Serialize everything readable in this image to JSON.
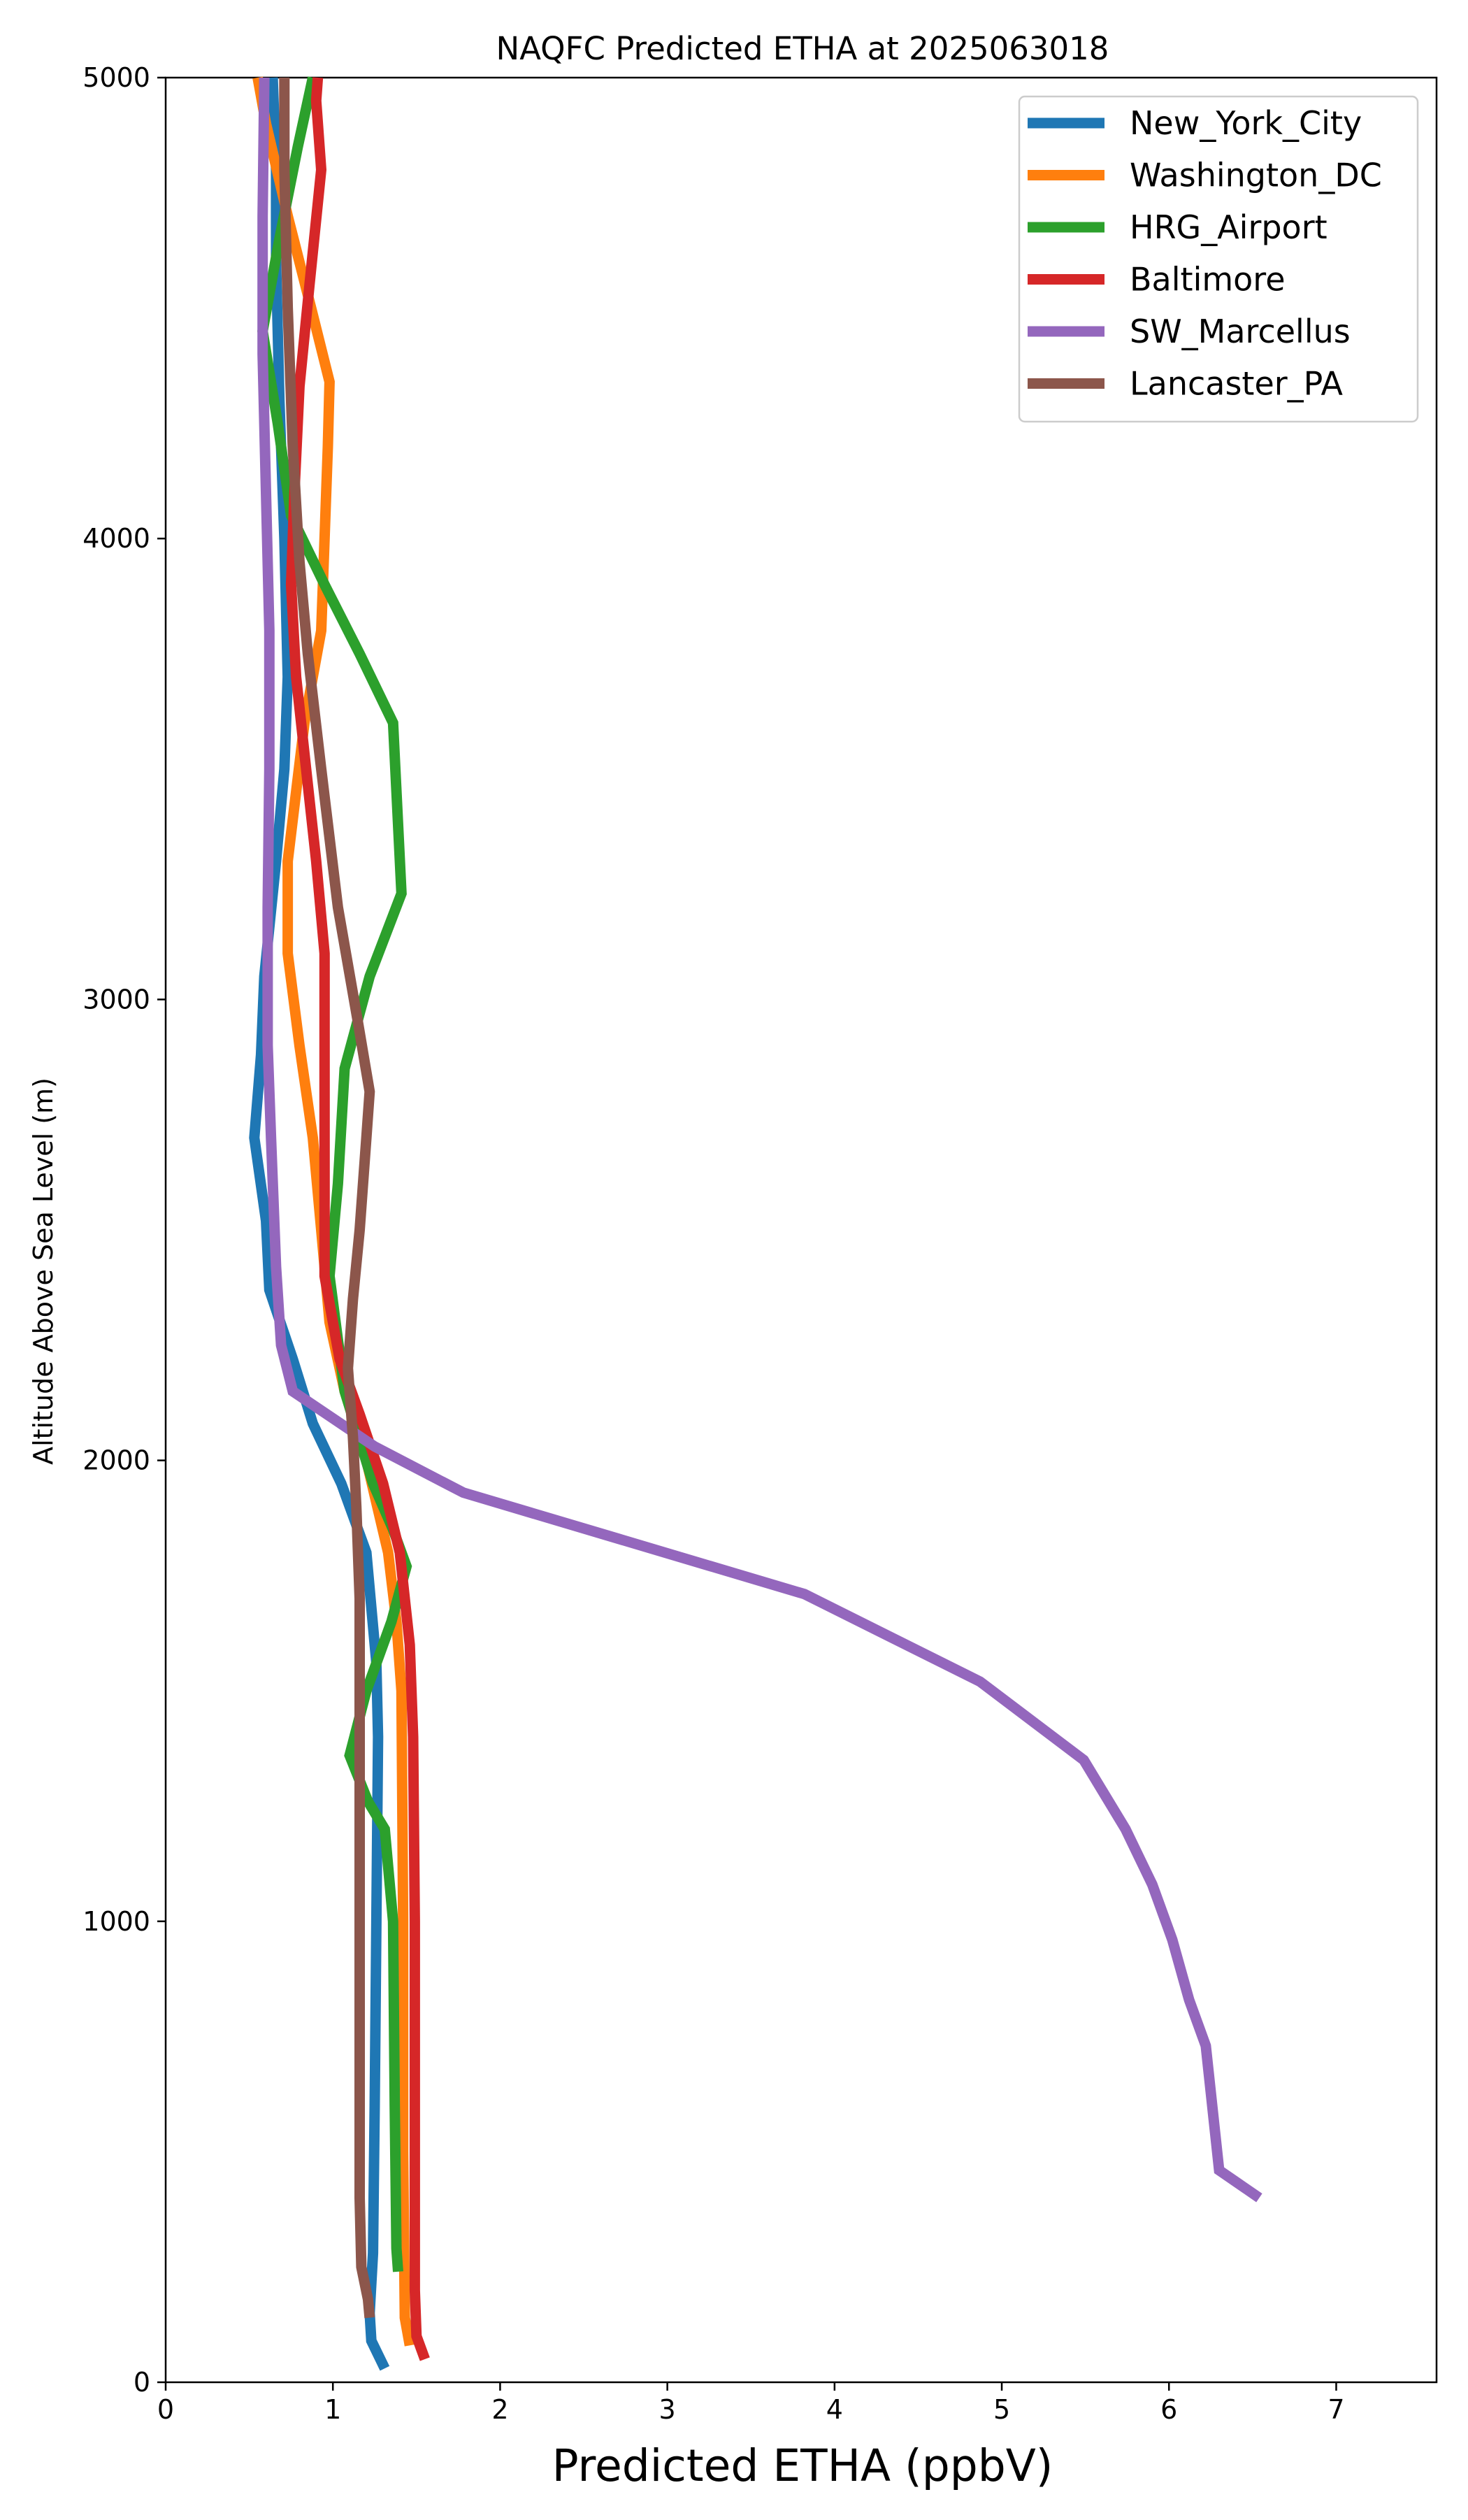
{
  "chart_data": {
    "type": "line",
    "title": "NAQFC Predicted ETHA at 2025063018",
    "xlabel": "Predicted ETHA (ppbV)",
    "ylabel": "Altitude Above Sea Level (m)",
    "xlim": [
      0,
      7.6
    ],
    "ylim": [
      0,
      5000
    ],
    "xticks": [
      0,
      1,
      2,
      3,
      4,
      5,
      6,
      7
    ],
    "yticks": [
      0,
      1000,
      2000,
      3000,
      4000,
      5000
    ],
    "grid": false,
    "legend_position": "top-right",
    "series": [
      {
        "name": "New_York_City",
        "color": "#1f77b4",
        "points": [
          [
            1.31,
            30
          ],
          [
            1.23,
            90
          ],
          [
            1.22,
            150
          ],
          [
            1.24,
            280
          ],
          [
            1.25,
            600
          ],
          [
            1.26,
            1000
          ],
          [
            1.27,
            1400
          ],
          [
            1.26,
            1560
          ],
          [
            1.2,
            1800
          ],
          [
            1.05,
            1950
          ],
          [
            0.88,
            2080
          ],
          [
            0.76,
            2220
          ],
          [
            0.62,
            2370
          ],
          [
            0.6,
            2520
          ],
          [
            0.53,
            2700
          ],
          [
            0.57,
            2880
          ],
          [
            0.59,
            3050
          ],
          [
            0.66,
            3300
          ],
          [
            0.71,
            3500
          ],
          [
            0.73,
            3700
          ],
          [
            0.71,
            4000
          ],
          [
            0.68,
            4300
          ],
          [
            0.66,
            4600
          ],
          [
            0.66,
            4800
          ],
          [
            0.64,
            5000
          ]
        ]
      },
      {
        "name": "Washington_DC",
        "color": "#ff7f0e",
        "points": [
          [
            1.46,
            80
          ],
          [
            1.43,
            140
          ],
          [
            1.42,
            500
          ],
          [
            1.42,
            1000
          ],
          [
            1.41,
            1500
          ],
          [
            1.38,
            1650
          ],
          [
            1.33,
            1800
          ],
          [
            1.2,
            2000
          ],
          [
            1.07,
            2150
          ],
          [
            0.98,
            2300
          ],
          [
            0.93,
            2500
          ],
          [
            0.88,
            2700
          ],
          [
            0.8,
            2900
          ],
          [
            0.73,
            3100
          ],
          [
            0.73,
            3300
          ],
          [
            0.83,
            3600
          ],
          [
            0.93,
            3800
          ],
          [
            0.95,
            4000
          ],
          [
            0.97,
            4200
          ],
          [
            0.98,
            4340
          ],
          [
            0.87,
            4500
          ],
          [
            0.73,
            4700
          ],
          [
            0.6,
            4900
          ],
          [
            0.55,
            5000
          ]
        ]
      },
      {
        "name": "HRG_Airport",
        "color": "#2ca02c",
        "points": [
          [
            1.39,
            240
          ],
          [
            1.38,
            290
          ],
          [
            1.37,
            600
          ],
          [
            1.36,
            1000
          ],
          [
            1.31,
            1200
          ],
          [
            1.21,
            1260
          ],
          [
            1.1,
            1360
          ],
          [
            1.2,
            1500
          ],
          [
            1.35,
            1650
          ],
          [
            1.44,
            1770
          ],
          [
            1.36,
            1850
          ],
          [
            1.24,
            1950
          ],
          [
            1.07,
            2150
          ],
          [
            0.98,
            2400
          ],
          [
            1.03,
            2600
          ],
          [
            1.07,
            2850
          ],
          [
            1.22,
            3050
          ],
          [
            1.41,
            3230
          ],
          [
            1.36,
            3600
          ],
          [
            1.16,
            3750
          ],
          [
            0.95,
            3900
          ],
          [
            0.75,
            4050
          ],
          [
            0.67,
            4250
          ],
          [
            0.58,
            4450
          ],
          [
            0.68,
            4650
          ],
          [
            0.79,
            4850
          ],
          [
            0.88,
            5000
          ]
        ]
      },
      {
        "name": "Baltimore",
        "color": "#d62728",
        "points": [
          [
            1.55,
            50
          ],
          [
            1.5,
            100
          ],
          [
            1.49,
            200
          ],
          [
            1.49,
            600
          ],
          [
            1.49,
            1000
          ],
          [
            1.48,
            1400
          ],
          [
            1.46,
            1600
          ],
          [
            1.4,
            1800
          ],
          [
            1.3,
            1950
          ],
          [
            1.16,
            2100
          ],
          [
            1.04,
            2220
          ],
          [
            0.95,
            2400
          ],
          [
            0.95,
            2700
          ],
          [
            0.95,
            2900
          ],
          [
            0.95,
            3100
          ],
          [
            0.9,
            3300
          ],
          [
            0.84,
            3500
          ],
          [
            0.78,
            3700
          ],
          [
            0.75,
            3900
          ],
          [
            0.77,
            4100
          ],
          [
            0.8,
            4330
          ],
          [
            0.86,
            4550
          ],
          [
            0.93,
            4800
          ],
          [
            0.9,
            4950
          ],
          [
            0.91,
            5000
          ]
        ]
      },
      {
        "name": "SW_Marcellus",
        "color": "#9467bd",
        "points": [
          [
            6.54,
            400
          ],
          [
            6.3,
            460
          ],
          [
            6.22,
            730
          ],
          [
            6.12,
            830
          ],
          [
            6.02,
            960
          ],
          [
            5.9,
            1080
          ],
          [
            5.74,
            1200
          ],
          [
            5.49,
            1350
          ],
          [
            4.87,
            1520
          ],
          [
            3.82,
            1710
          ],
          [
            1.78,
            1930
          ],
          [
            1.25,
            2030
          ],
          [
            0.76,
            2150
          ],
          [
            0.69,
            2250
          ],
          [
            0.66,
            2420
          ],
          [
            0.63,
            2700
          ],
          [
            0.61,
            2900
          ],
          [
            0.61,
            3200
          ],
          [
            0.62,
            3500
          ],
          [
            0.62,
            3800
          ],
          [
            0.6,
            4100
          ],
          [
            0.58,
            4400
          ],
          [
            0.58,
            4700
          ],
          [
            0.59,
            5000
          ]
        ]
      },
      {
        "name": "Lancaster_PA",
        "color": "#8c564b",
        "points": [
          [
            1.22,
            140
          ],
          [
            1.21,
            180
          ],
          [
            1.17,
            250
          ],
          [
            1.16,
            400
          ],
          [
            1.16,
            700
          ],
          [
            1.16,
            1000
          ],
          [
            1.16,
            1300
          ],
          [
            1.16,
            1500
          ],
          [
            1.16,
            1700
          ],
          [
            1.14,
            1900
          ],
          [
            1.12,
            2050
          ],
          [
            1.09,
            2200
          ],
          [
            1.12,
            2350
          ],
          [
            1.16,
            2500
          ],
          [
            1.2,
            2700
          ],
          [
            1.22,
            2800
          ],
          [
            1.15,
            2950
          ],
          [
            1.03,
            3200
          ],
          [
            0.93,
            3500
          ],
          [
            0.85,
            3750
          ],
          [
            0.8,
            3950
          ],
          [
            0.76,
            4200
          ],
          [
            0.73,
            4500
          ],
          [
            0.71,
            4800
          ],
          [
            0.71,
            5000
          ]
        ]
      }
    ]
  }
}
